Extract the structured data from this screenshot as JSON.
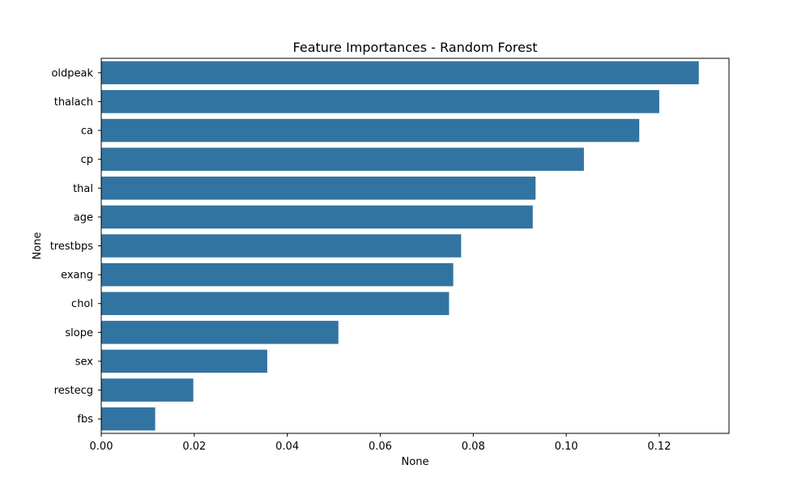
{
  "chart_data": {
    "type": "bar",
    "orientation": "horizontal",
    "title": "Feature Importances - Random Forest",
    "xlabel": "None",
    "ylabel": "None",
    "categories": [
      "oldpeak",
      "thalach",
      "ca",
      "cp",
      "thal",
      "age",
      "trestbps",
      "exang",
      "chol",
      "slope",
      "sex",
      "restecg",
      "fbs"
    ],
    "values": [
      0.1285,
      0.12,
      0.1157,
      0.1038,
      0.0934,
      0.0928,
      0.0774,
      0.0757,
      0.0748,
      0.051,
      0.0357,
      0.0198,
      0.0116
    ],
    "xlim": [
      0.0,
      0.135
    ],
    "xticks": [
      "0.00",
      "0.02",
      "0.04",
      "0.06",
      "0.08",
      "0.10",
      "0.12"
    ],
    "bar_color": "#3274a1",
    "grid": false
  }
}
